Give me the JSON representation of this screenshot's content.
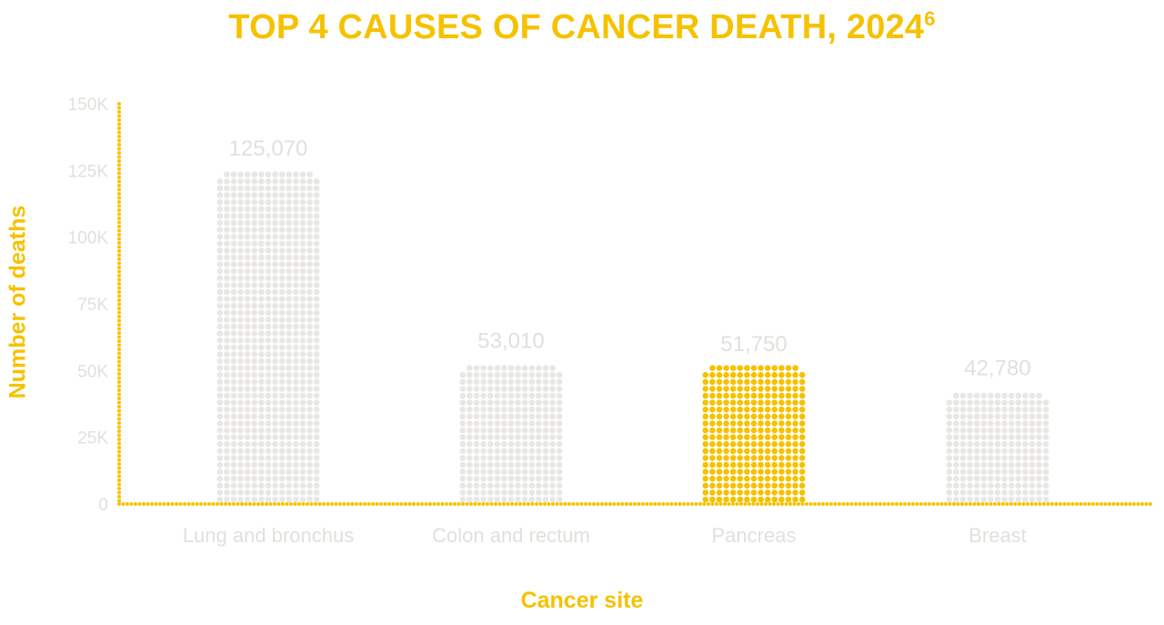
{
  "chart_data": {
    "type": "bar",
    "title": "TOP 4 CAUSES OF CANCER DEATH, 2024",
    "title_footnote": "6",
    "xlabel": "Cancer site",
    "ylabel": "Number of deaths",
    "categories": [
      "Lung and bronchus",
      "Colon and rectum",
      "Pancreas",
      "Breast"
    ],
    "values": [
      125070,
      53010,
      51750,
      42780
    ],
    "value_labels": [
      "125,070",
      "53,010",
      "51,750",
      "42,780"
    ],
    "highlight": "Pancreas",
    "ylim": [
      0,
      150000
    ],
    "yticks": [
      0,
      25000,
      50000,
      75000,
      100000,
      125000,
      150000
    ],
    "ytick_labels": [
      "0",
      "25K",
      "50K",
      "75K",
      "100K",
      "125K",
      "150K"
    ],
    "grid": false,
    "legend": "none"
  },
  "colors": {
    "accent": "#F5C200",
    "bar": "#E9E7E3",
    "label": "#E2E0DC"
  }
}
